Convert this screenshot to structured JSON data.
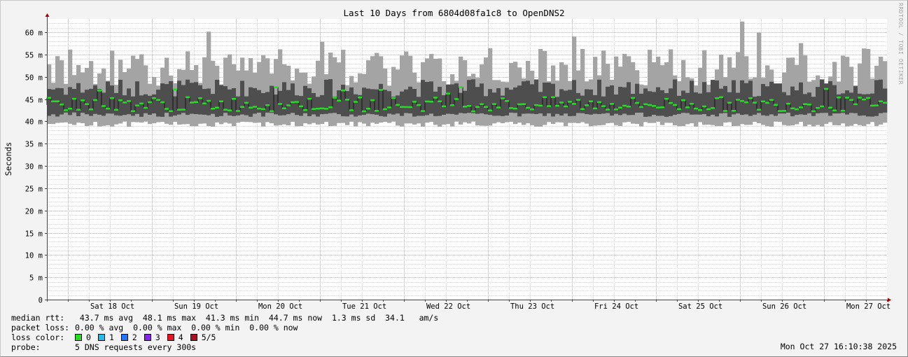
{
  "chart_data": {
    "type": "line",
    "title": "Last 10 Days from 6804d08fa1c8 to OpenDNS2",
    "ylabel": "Seconds",
    "ylim": [
      0,
      0.063
    ],
    "y_ticks": [
      {
        "value": 0,
        "label": "0"
      },
      {
        "value": 0.005,
        "label": "5 m"
      },
      {
        "value": 0.01,
        "label": "10 m"
      },
      {
        "value": 0.015,
        "label": "15 m"
      },
      {
        "value": 0.02,
        "label": "20 m"
      },
      {
        "value": 0.025,
        "label": "25 m"
      },
      {
        "value": 0.03,
        "label": "30 m"
      },
      {
        "value": 0.035,
        "label": "35 m"
      },
      {
        "value": 0.04,
        "label": "40 m"
      },
      {
        "value": 0.045,
        "label": "45 m"
      },
      {
        "value": 0.05,
        "label": "50 m"
      },
      {
        "value": 0.055,
        "label": "55 m"
      },
      {
        "value": 0.06,
        "label": "60 m"
      }
    ],
    "x_ticks": [
      "Sat 18 Oct",
      "Sun 19 Oct",
      "Mon 20 Oct",
      "Tue 21 Oct",
      "Wed 22 Oct",
      "Thu 23 Oct",
      "Fri 24 Oct",
      "Sat 25 Oct",
      "Sun 26 Oct",
      "Mon 27 Oct"
    ],
    "grid": true,
    "series": [
      {
        "name": "median rtt",
        "color": "#22dd22",
        "summary": {
          "avg": 0.0437,
          "max": 0.0481,
          "min": 0.0413,
          "now": 0.0447
        }
      },
      {
        "name": "packet loss",
        "summary": {
          "avg": 0,
          "max": 0,
          "min": 0,
          "now": 0
        }
      }
    ],
    "smoke_band_approx": {
      "outer_low": 0.04,
      "outer_high": 0.054,
      "inner_low": 0.041,
      "inner_high": 0.047
    },
    "colors": {
      "smoke_outer": "#a4a4a4",
      "smoke_inner": "#4e4e4e",
      "median": "#22dd22",
      "grid_major": "#e3a0a0",
      "grid_minor": "#d8d8d8",
      "axis_arrow": "#aa0000"
    }
  },
  "watermark": "RRDTOOL / TOBI OETIKER",
  "legend": {
    "median_rtt": {
      "label": "median rtt:",
      "text": " 43.7 ms avg  48.1 ms max  41.3 ms min  44.7 ms now  1.3 ms sd  34.1   am/s"
    },
    "packet_loss": {
      "label": "packet loss:",
      "text": "0.00 % avg  0.00 % max  0.00 % min  0.00 % now"
    },
    "loss_color": {
      "label": "loss color:",
      "items": [
        {
          "label": "0",
          "color": "#22dd22"
        },
        {
          "label": "1",
          "color": "#22bbee"
        },
        {
          "label": "2",
          "color": "#2277ff"
        },
        {
          "label": "3",
          "color": "#8822ee"
        },
        {
          "label": "4",
          "color": "#ee1122"
        },
        {
          "label": "5/5",
          "color": "#aa1122"
        }
      ]
    },
    "probe": {
      "label": "probe:",
      "text": "5 DNS requests every 300s"
    }
  },
  "timestamp": "Mon Oct 27 16:10:38 2025"
}
